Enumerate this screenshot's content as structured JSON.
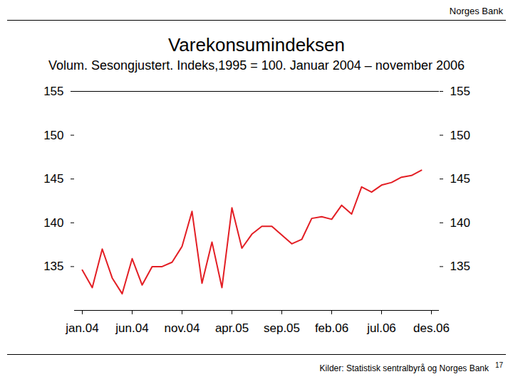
{
  "header": {
    "text": "Norges Bank"
  },
  "chart_data": {
    "type": "line",
    "title": "Varekonsumindeksen",
    "subtitle": "Volum. Sesongjustert. Indeks,1995 = 100. Januar 2004 – november 2006",
    "categories": [
      "jan.04",
      null,
      null,
      null,
      null,
      "jun.04",
      null,
      null,
      null,
      null,
      "nov.04",
      null,
      null,
      null,
      null,
      "apr.05",
      null,
      null,
      null,
      null,
      "sep.05",
      null,
      null,
      null,
      null,
      "feb.06",
      null,
      null,
      null,
      null,
      "jul.06",
      null,
      null,
      null,
      null,
      "des.06"
    ],
    "values": [
      134.6,
      132.6,
      137.0,
      133.7,
      131.9,
      135.9,
      132.9,
      135.0,
      135.0,
      135.5,
      137.3,
      141.3,
      133.1,
      137.8,
      132.6,
      141.7,
      137.1,
      138.7,
      139.6,
      139.6,
      138.6,
      137.6,
      138.1,
      140.5,
      140.7,
      140.4,
      142.0,
      141.0,
      144.1,
      143.5,
      144.3,
      144.6,
      145.2,
      145.4,
      146.0,
      null
    ],
    "color": "#e31e24",
    "ylim": [
      130,
      155
    ],
    "yticks": [
      135,
      140,
      145,
      150,
      155
    ],
    "grid": false
  },
  "footer": {
    "source": "Kilder: Statistisk sentralbyrå og Norges Bank",
    "page": 17
  }
}
